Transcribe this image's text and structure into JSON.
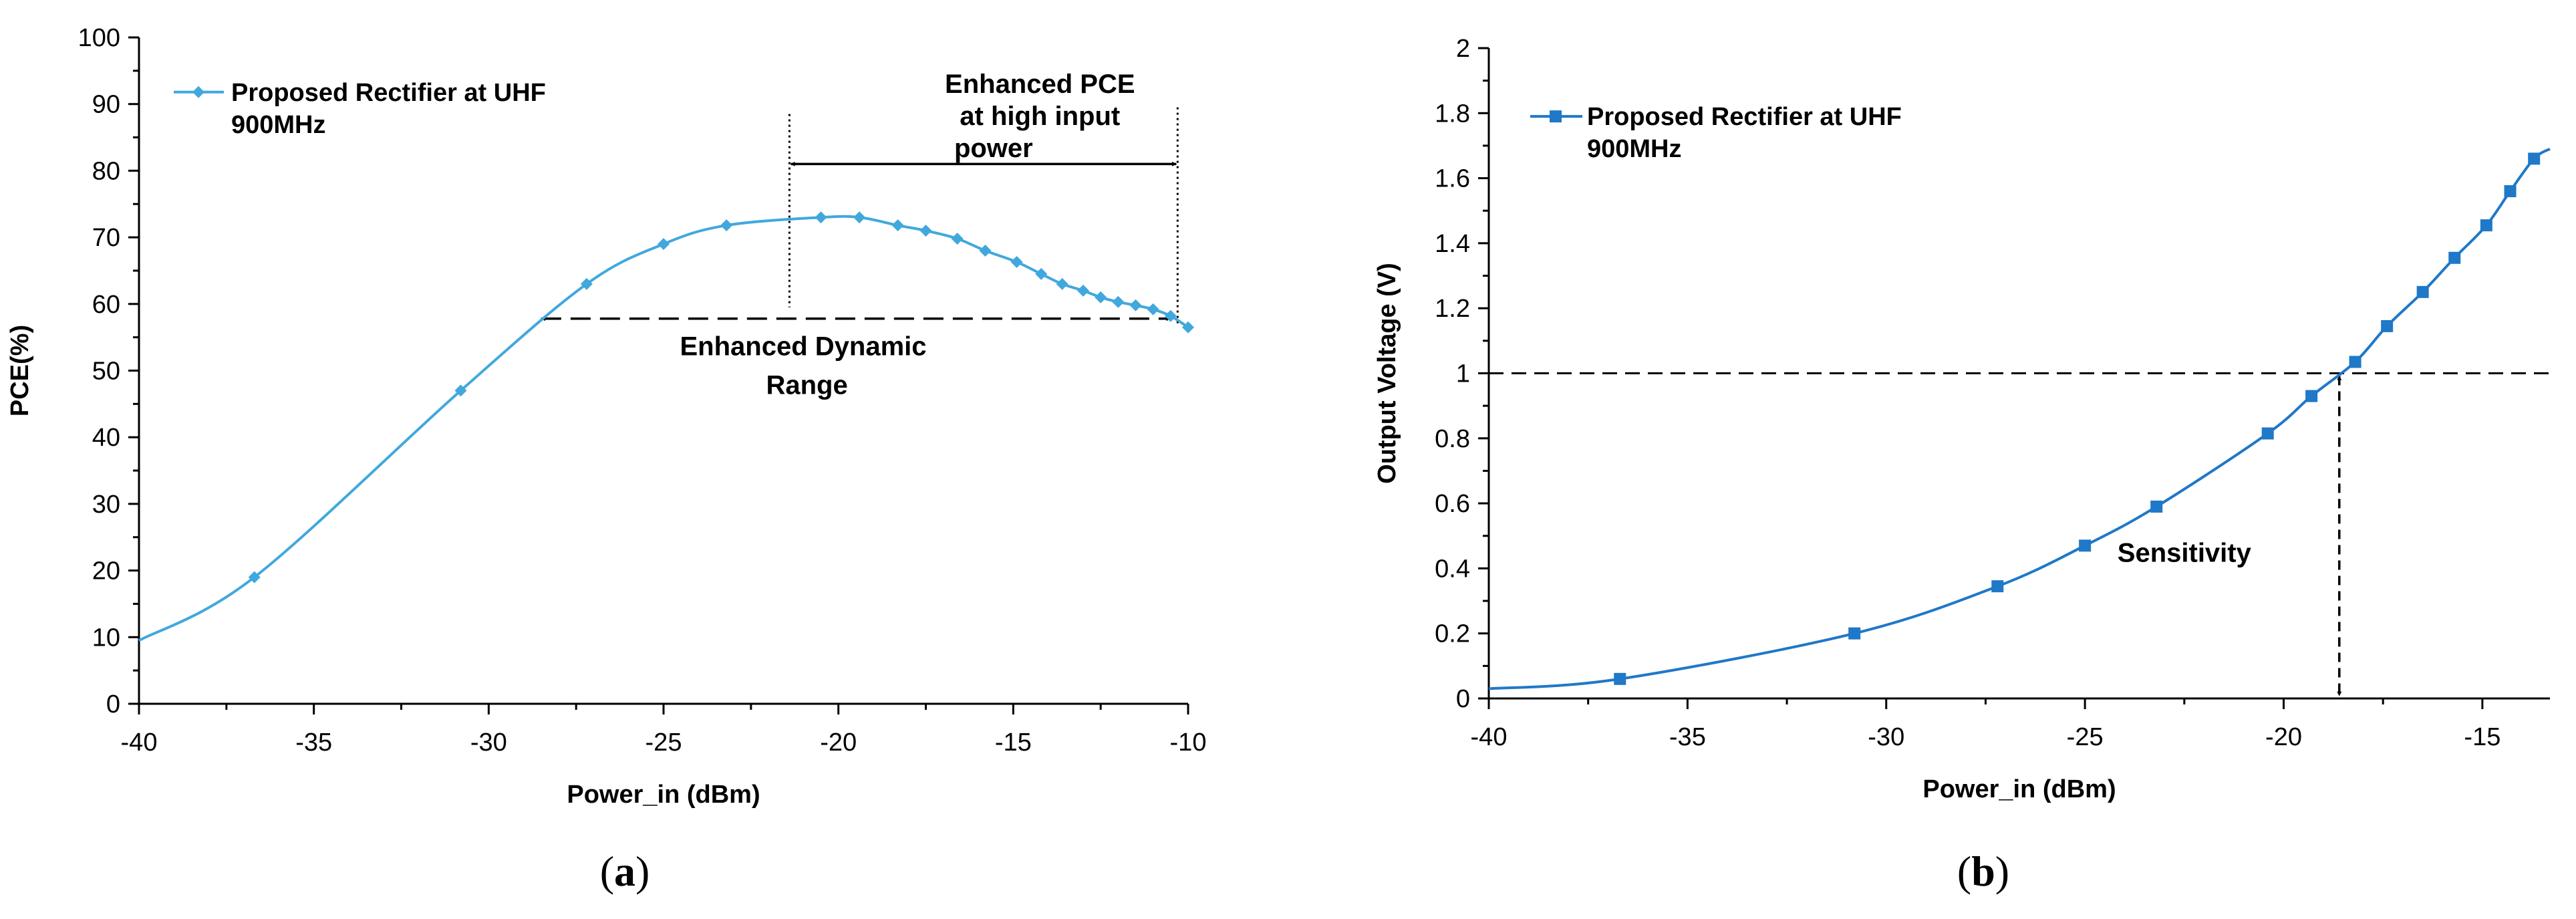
{
  "chart_data": [
    {
      "type": "line",
      "panel_label": "(a)",
      "panel_letter": "a",
      "title": "",
      "xlabel": "Power_in (dBm)",
      "ylabel": "PCE(%)",
      "xlim": [
        -40,
        -10
      ],
      "ylim": [
        0,
        100
      ],
      "xticks": [
        -40,
        -35,
        -30,
        -25,
        -20,
        -15,
        -10
      ],
      "yticks": [
        0,
        10,
        20,
        30,
        40,
        50,
        60,
        70,
        80,
        90,
        100
      ],
      "grid": false,
      "legend_position": "top-left",
      "color": "#41a8dd",
      "marker": "diamond",
      "series": [
        {
          "name": "Proposed Rectifier at UHF 900MHz",
          "legend_lines": [
            "Proposed Rectifier at UHF",
            "900MHz"
          ],
          "x": [
            -40,
            -36.7,
            -30.8,
            -27.2,
            -25,
            -23.2,
            -20.5,
            -19.4,
            -18.3,
            -17.5,
            -16.6,
            -15.8,
            -14.9,
            -14.2,
            -13.6,
            -13.0,
            -12.5,
            -12.0,
            -11.5,
            -11.0,
            -10.5,
            -10.0
          ],
          "values": [
            9.5,
            19,
            47,
            63,
            69,
            71.8,
            73,
            73,
            71.8,
            71,
            69.8,
            68,
            66.3,
            64.5,
            63,
            62,
            61,
            60.3,
            59.8,
            59.2,
            58.2,
            56.5
          ],
          "markers_x": [
            -36.7,
            -30.8,
            -27.2,
            -25,
            -23.2,
            -20.5,
            -19.4,
            -18.3,
            -17.5,
            -16.6,
            -15.8,
            -14.9,
            -14.2,
            -13.6,
            -13.0,
            -12.5,
            -12.0,
            -11.5,
            -11.0,
            -10.5,
            -10.0
          ],
          "markers_y": [
            19,
            47,
            63,
            69,
            71.8,
            73,
            73,
            71.8,
            71,
            69.8,
            68,
            66.3,
            64.5,
            63,
            62,
            61,
            60.3,
            59.8,
            59.2,
            58.2,
            56.5
          ]
        }
      ],
      "annotations": {
        "pce_region": {
          "lines": [
            "Enhanced  PCE",
            "at high input",
            "power"
          ],
          "x_start": -21.4,
          "x_end": -10.3,
          "y": 81
        },
        "dynamic_range": {
          "lines": [
            "Enhanced  Dynamic",
            "Range"
          ],
          "x_start": -28.5,
          "x_end": -10.5,
          "y": 57.8
        }
      }
    },
    {
      "type": "line",
      "panel_label": "(b)",
      "panel_letter": "b",
      "title": "",
      "xlabel": "Power_in (dBm)",
      "ylabel": "Output Voltage (V)",
      "xlim": [
        -40,
        -13.3
      ],
      "ylim": [
        0,
        2
      ],
      "xticks": [
        -40,
        -35,
        -30,
        -25,
        -20,
        -15
      ],
      "yticks": [
        0,
        0.2,
        0.4,
        0.6,
        0.8,
        1,
        1.2,
        1.4,
        1.6,
        1.8,
        2
      ],
      "grid": false,
      "legend_position": "top-left",
      "color": "#1f78c8",
      "marker": "square",
      "series": [
        {
          "name": "Proposed Rectifier at UHF 900MHz",
          "legend_lines": [
            "Proposed Rectifier at UHF",
            "900MHz"
          ],
          "x": [
            -40,
            -36.7,
            -30.8,
            -27.2,
            -25,
            -23.2,
            -20.4,
            -19.3,
            -18.2,
            -17.4,
            -16.5,
            -15.7,
            -14.9,
            -14.3,
            -13.7,
            -13.3
          ],
          "values": [
            0.03,
            0.06,
            0.2,
            0.345,
            0.47,
            0.59,
            0.815,
            0.93,
            1.035,
            1.145,
            1.25,
            1.355,
            1.455,
            1.56,
            1.66,
            1.69
          ],
          "markers_x": [
            -36.7,
            -30.8,
            -27.2,
            -25,
            -23.2,
            -20.4,
            -19.3,
            -18.2,
            -17.4,
            -16.5,
            -15.7,
            -14.9,
            -14.3,
            -13.7
          ],
          "markers_y": [
            0.06,
            0.2,
            0.345,
            0.47,
            0.59,
            0.815,
            0.93,
            1.035,
            1.145,
            1.25,
            1.355,
            1.455,
            1.56,
            1.66
          ]
        }
      ],
      "annotations": {
        "threshold_y": 1,
        "sensitivity": {
          "label": "Sensitivity",
          "x": -18.6,
          "y_from": 1,
          "y_to": 0
        }
      }
    }
  ]
}
